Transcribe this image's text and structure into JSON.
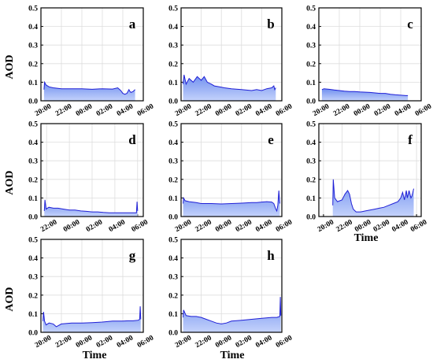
{
  "figure": {
    "ylabel": "AOD",
    "xlabel": "Time"
  },
  "colors": {
    "line": "#1f1fd6",
    "fill_top": "#6f8fef",
    "fill_bottom": "#c4d2fb",
    "grid": "#dddddd",
    "axes": "#000000"
  },
  "chart_data": [
    {
      "panel": "a",
      "type": "area",
      "ylim": [
        0,
        0.5
      ],
      "yticks": [
        "0.0",
        "0.1",
        "0.2",
        "0.3",
        "0.4",
        "0.5"
      ],
      "xticks": [
        "20:00",
        "22:00",
        "00:00",
        "02:00",
        "04:00",
        "06:00"
      ],
      "xlim": [
        20,
        30
      ],
      "x": [
        20.3,
        20.35,
        20.5,
        20.8,
        21.2,
        22,
        23,
        24,
        25,
        26,
        27,
        27.5,
        27.8,
        28.0,
        28.2,
        28.4,
        28.6,
        28.7,
        28.8,
        29.0,
        29.2
      ],
      "y": [
        0.06,
        0.1,
        0.085,
        0.075,
        0.07,
        0.065,
        0.065,
        0.065,
        0.062,
        0.065,
        0.063,
        0.07,
        0.055,
        0.04,
        0.035,
        0.04,
        0.06,
        0.05,
        0.045,
        0.05,
        0.06
      ]
    },
    {
      "panel": "b",
      "type": "area",
      "ylim": [
        0,
        0.5
      ],
      "yticks": [
        "0.0",
        "0.1",
        "0.2",
        "0.3",
        "0.4",
        "0.5"
      ],
      "xticks": [
        "20:00",
        "22:00",
        "00:00",
        "02:00",
        "04:00",
        "06:00"
      ],
      "xlim": [
        20,
        30
      ],
      "x": [
        20.2,
        20.3,
        20.5,
        20.8,
        21.2,
        21.6,
        22.0,
        22.3,
        22.6,
        23.0,
        23.3,
        23.8,
        24.3,
        25,
        26,
        27,
        27.5,
        28,
        28.5,
        29,
        29.2,
        29.3,
        29.4
      ],
      "y": [
        0.09,
        0.14,
        0.09,
        0.12,
        0.1,
        0.13,
        0.11,
        0.13,
        0.1,
        0.09,
        0.08,
        0.075,
        0.07,
        0.065,
        0.06,
        0.055,
        0.06,
        0.055,
        0.065,
        0.07,
        0.08,
        0.06,
        0.07
      ]
    },
    {
      "panel": "c",
      "type": "area",
      "ylim": [
        0,
        0.5
      ],
      "yticks": [
        "0.0",
        "0.1",
        "0.2",
        "0.3",
        "0.4",
        "0.5"
      ],
      "xticks": [
        "20:00",
        "22:00",
        "00:00",
        "02:00",
        "04:00",
        "06:00"
      ],
      "xlim": [
        20,
        30
      ],
      "x": [
        20.3,
        20.5,
        21,
        21.5,
        22,
        22.5,
        23,
        23.5,
        24,
        25,
        26,
        26.5,
        27,
        27.5,
        28,
        28.5,
        28.7
      ],
      "y": [
        0.06,
        0.065,
        0.062,
        0.058,
        0.055,
        0.052,
        0.05,
        0.05,
        0.048,
        0.045,
        0.04,
        0.04,
        0.035,
        0.032,
        0.03,
        0.028,
        0.028
      ]
    },
    {
      "panel": "d",
      "type": "area",
      "ylim": [
        0,
        0.5
      ],
      "yticks": [
        "0.0",
        "0.1",
        "0.2",
        "0.3",
        "0.4",
        "0.5"
      ],
      "xticks": [
        "22:00",
        "00:00",
        "02:00",
        "04:00",
        "06:00"
      ],
      "xlim": [
        21.5,
        30.5
      ],
      "x": [
        21.8,
        21.85,
        21.95,
        22.2,
        22.6,
        23,
        23.5,
        24,
        24.5,
        25,
        25.5,
        26,
        26.5,
        27,
        27.5,
        28,
        28.5,
        29,
        29.5,
        29.9,
        29.95,
        30.0
      ],
      "y": [
        0.03,
        0.09,
        0.04,
        0.05,
        0.045,
        0.045,
        0.04,
        0.035,
        0.035,
        0.03,
        0.028,
        0.025,
        0.025,
        0.022,
        0.02,
        0.02,
        0.02,
        0.02,
        0.02,
        0.02,
        0.08,
        0.03
      ]
    },
    {
      "panel": "e",
      "type": "area",
      "ylim": [
        0,
        0.5
      ],
      "yticks": [
        "0.0",
        "0.1",
        "0.2",
        "0.3",
        "0.4",
        "0.5"
      ],
      "xticks": [
        "20:00",
        "22:00",
        "00:00",
        "02:00",
        "04:00",
        "06:00"
      ],
      "xlim": [
        20,
        30
      ],
      "x": [
        20.2,
        20.25,
        20.4,
        20.8,
        21.5,
        22,
        23,
        24,
        25,
        26,
        27,
        27.5,
        28,
        28.5,
        29,
        29.2,
        29.4,
        29.5,
        29.6,
        29.7,
        29.8
      ],
      "y": [
        0.07,
        0.1,
        0.085,
        0.08,
        0.075,
        0.07,
        0.07,
        0.068,
        0.07,
        0.072,
        0.075,
        0.075,
        0.078,
        0.08,
        0.078,
        0.07,
        0.04,
        0.03,
        0.06,
        0.14,
        0.07
      ]
    },
    {
      "panel": "f",
      "type": "area",
      "ylim": [
        0,
        0.5
      ],
      "yticks": [
        "0.0",
        "0.1",
        "0.2",
        "0.3",
        "0.4",
        "0.5"
      ],
      "xticks": [
        "20:00",
        "22:00",
        "00:00",
        "02:00",
        "04:00",
        "06:00"
      ],
      "xlim": [
        19.5,
        30.5
      ],
      "x": [
        21.0,
        21.05,
        21.2,
        21.5,
        22,
        22.3,
        22.6,
        22.8,
        23.0,
        23.2,
        23.5,
        24,
        24.5,
        25,
        25.5,
        26,
        26.5,
        27,
        27.5,
        28,
        28.3,
        28.5,
        28.7,
        28.9,
        29.0,
        29.2,
        29.4,
        29.5,
        29.7
      ],
      "y": [
        0.06,
        0.2,
        0.1,
        0.08,
        0.09,
        0.12,
        0.14,
        0.12,
        0.07,
        0.04,
        0.025,
        0.025,
        0.03,
        0.035,
        0.04,
        0.045,
        0.05,
        0.06,
        0.07,
        0.08,
        0.1,
        0.13,
        0.09,
        0.14,
        0.1,
        0.14,
        0.1,
        0.11,
        0.15
      ]
    },
    {
      "panel": "g",
      "type": "area",
      "ylim": [
        0,
        0.5
      ],
      "yticks": [
        "0.0",
        "0.1",
        "0.2",
        "0.3",
        "0.4",
        "0.5"
      ],
      "xticks": [
        "20:00",
        "22:00",
        "00:00",
        "02:00",
        "04:00",
        "06:00"
      ],
      "xlim": [
        20,
        30
      ],
      "x": [
        20.2,
        20.25,
        20.35,
        20.5,
        20.8,
        21.2,
        21.5,
        22,
        23,
        24,
        25,
        26,
        27,
        28,
        28.5,
        29,
        29.5,
        29.65,
        29.7,
        29.75
      ],
      "y": [
        0.06,
        0.11,
        0.06,
        0.04,
        0.05,
        0.045,
        0.03,
        0.045,
        0.05,
        0.05,
        0.052,
        0.055,
        0.06,
        0.06,
        0.062,
        0.062,
        0.065,
        0.07,
        0.14,
        0.07
      ]
    },
    {
      "panel": "h",
      "type": "area",
      "ylim": [
        0,
        0.5
      ],
      "yticks": [
        "0.0",
        "0.1",
        "0.2",
        "0.3",
        "0.4",
        "0.5"
      ],
      "xticks": [
        "20:00",
        "22:00",
        "00:00",
        "02:00",
        "04:00",
        "06:00"
      ],
      "xlim": [
        20,
        30
      ],
      "x": [
        20.2,
        20.25,
        20.5,
        21,
        21.5,
        22,
        22.5,
        23,
        23.5,
        24,
        24.5,
        25,
        26,
        27,
        28,
        29,
        29.5,
        29.8,
        29.85,
        29.9
      ],
      "y": [
        0.08,
        0.12,
        0.09,
        0.085,
        0.085,
        0.08,
        0.07,
        0.06,
        0.05,
        0.045,
        0.05,
        0.06,
        0.065,
        0.07,
        0.075,
        0.08,
        0.08,
        0.085,
        0.19,
        0.09
      ]
    }
  ]
}
